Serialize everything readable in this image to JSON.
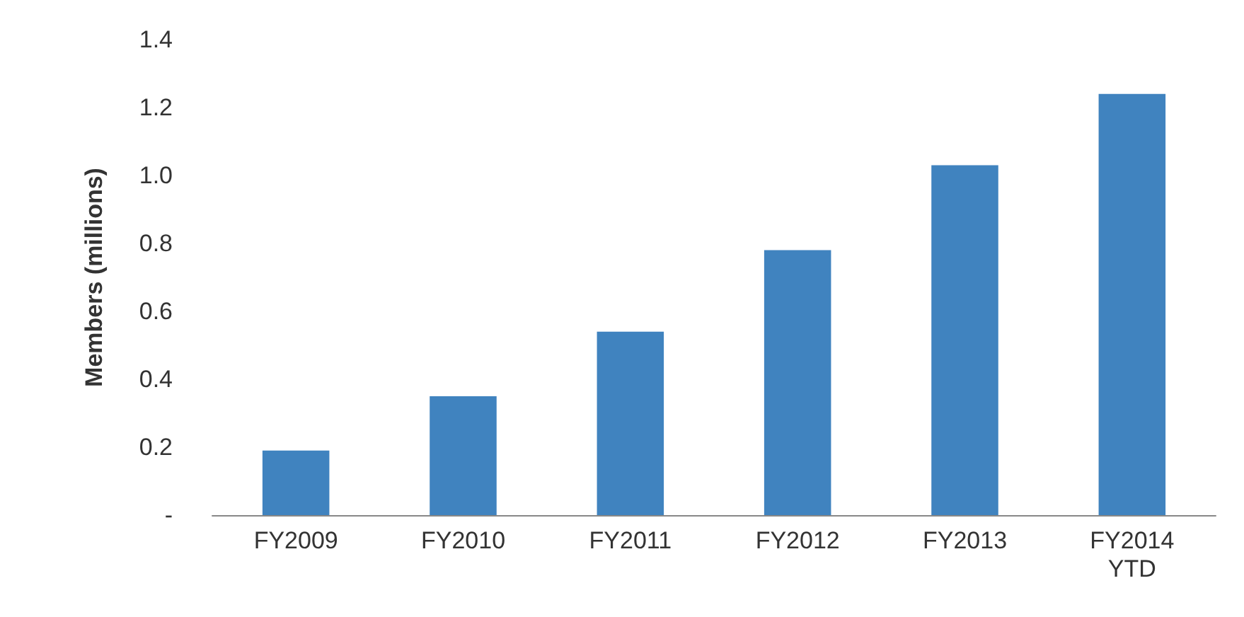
{
  "chart_data": {
    "type": "bar",
    "ylabel": "Members (millions)",
    "categories": [
      "FY2009",
      "FY2010",
      "FY2011",
      "FY2012",
      "FY2013",
      "FY2014\nYTD"
    ],
    "values": [
      0.19,
      0.35,
      0.54,
      0.78,
      1.03,
      1.24
    ],
    "color": "#4083bf",
    "ylim": [
      0,
      1.4
    ],
    "yticks": [
      {
        "value": 0,
        "label": "-"
      },
      0.2,
      0.4,
      0.6,
      0.8,
      {
        "value": 1,
        "label": "1.0"
      },
      1.2,
      1.4
    ],
    "grid": false
  }
}
